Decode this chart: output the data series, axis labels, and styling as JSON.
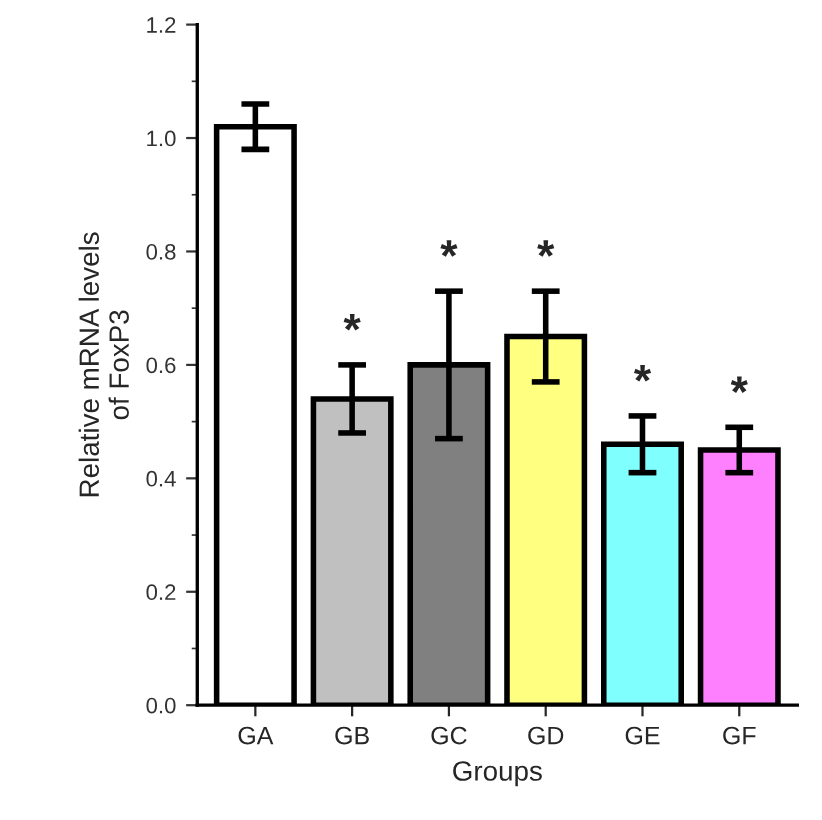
{
  "chart_data": {
    "type": "bar",
    "xlabel": "Groups",
    "ylabel": "Relative mRNA levels\nof FoxP3",
    "categories": [
      "GA",
      "GB",
      "GC",
      "GD",
      "GE",
      "GF"
    ],
    "values": [
      1.02,
      0.54,
      0.6,
      0.65,
      0.46,
      0.45
    ],
    "errors": [
      0.04,
      0.06,
      0.13,
      0.08,
      0.05,
      0.04
    ],
    "colors": [
      "#ffffff",
      "#c0c0c0",
      "#808080",
      "#ffff80",
      "#80ffff",
      "#ff80ff"
    ],
    "ylim": [
      0,
      1.2
    ],
    "yticks": [
      {
        "value": 0,
        "label": "0.0"
      },
      0.2,
      0.4,
      0.6,
      0.8,
      {
        "value": 1,
        "label": "1.0"
      },
      1.2
    ],
    "grid": false,
    "annotations": [
      "*",
      "*",
      "*",
      "*",
      "*"
    ]
  }
}
